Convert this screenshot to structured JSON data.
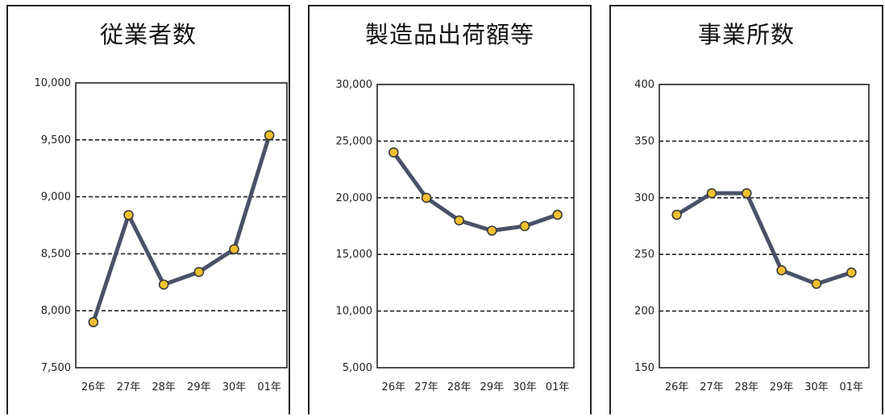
{
  "chart_data": [
    {
      "type": "line",
      "title": "従業者数",
      "categories": [
        "26年",
        "27年",
        "28年",
        "29年",
        "30年",
        "01年"
      ],
      "values": [
        7900,
        8840,
        8230,
        8340,
        8540,
        9540
      ],
      "ylim": [
        7500,
        10000
      ],
      "yticks": [
        "7,500",
        "8,000",
        "8,500",
        "9,000",
        "9,500",
        "10,000"
      ],
      "grid": true,
      "line_color": "#4a5268",
      "marker_color": "#f2c12e"
    },
    {
      "type": "line",
      "title": "製造品出荷額等",
      "categories": [
        "26年",
        "27年",
        "28年",
        "29年",
        "30年",
        "01年"
      ],
      "values": [
        24000,
        20000,
        18000,
        17100,
        17500,
        18500
      ],
      "ylim": [
        5000,
        30000
      ],
      "yticks": [
        "5,000",
        "10,000",
        "15,000",
        "20,000",
        "25,000",
        "30,000"
      ],
      "grid": true,
      "line_color": "#4a5268",
      "marker_color": "#f2c12e"
    },
    {
      "type": "line",
      "title": "事業所数",
      "categories": [
        "26年",
        "27年",
        "28年",
        "29年",
        "30年",
        "01年"
      ],
      "values": [
        285,
        304,
        304,
        236,
        224,
        234
      ],
      "ylim": [
        150,
        400
      ],
      "yticks": [
        "150",
        "200",
        "250",
        "300",
        "350",
        "400"
      ],
      "grid": true,
      "line_color": "#4a5268",
      "marker_color": "#f2c12e"
    }
  ]
}
